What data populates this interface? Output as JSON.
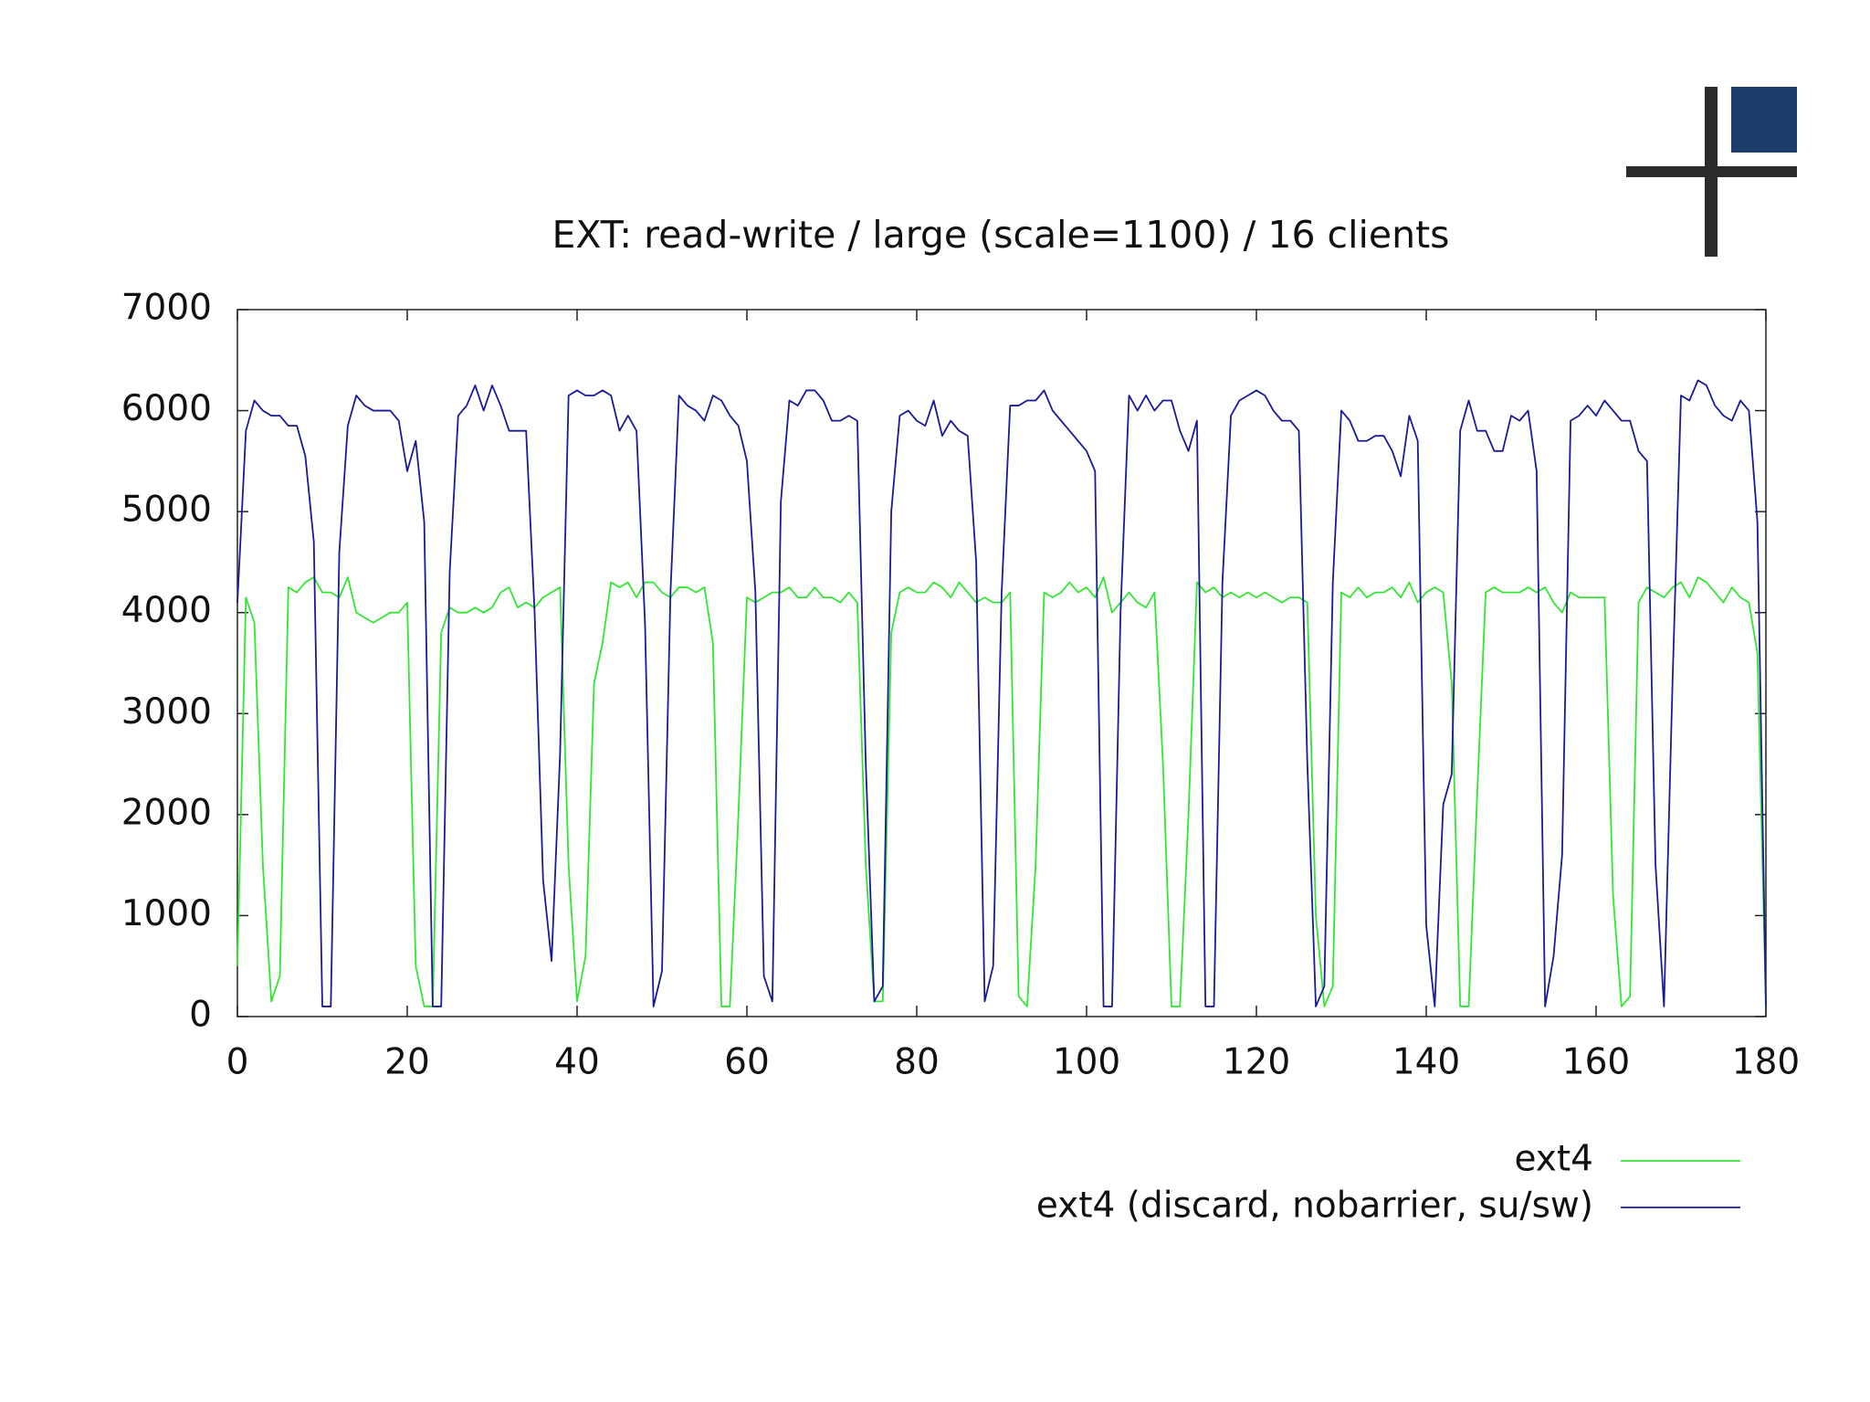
{
  "chart_data": {
    "type": "line",
    "title": "EXT: read-write / large (scale=1100) / 16 clients",
    "x": [
      0,
      1,
      2,
      3,
      4,
      5,
      6,
      7,
      8,
      9,
      10,
      11,
      12,
      13,
      14,
      15,
      16,
      17,
      18,
      19,
      20,
      21,
      22,
      23,
      24,
      25,
      26,
      27,
      28,
      29,
      30,
      31,
      32,
      33,
      34,
      35,
      36,
      37,
      38,
      39,
      40,
      41,
      42,
      43,
      44,
      45,
      46,
      47,
      48,
      49,
      50,
      51,
      52,
      53,
      54,
      55,
      56,
      57,
      58,
      59,
      60,
      61,
      62,
      63,
      64,
      65,
      66,
      67,
      68,
      69,
      70,
      71,
      72,
      73,
      74,
      75,
      76,
      77,
      78,
      79,
      80,
      81,
      82,
      83,
      84,
      85,
      86,
      87,
      88,
      89,
      90,
      91,
      92,
      93,
      94,
      95,
      96,
      97,
      98,
      99,
      100,
      101,
      102,
      103,
      104,
      105,
      106,
      107,
      108,
      109,
      110,
      111,
      112,
      113,
      114,
      115,
      116,
      117,
      118,
      119,
      120,
      121,
      122,
      123,
      124,
      125,
      126,
      127,
      128,
      129,
      130,
      131,
      132,
      133,
      134,
      135,
      136,
      137,
      138,
      139,
      140,
      141,
      142,
      143,
      144,
      145,
      146,
      147,
      148,
      149,
      150,
      151,
      152,
      153,
      154,
      155,
      156,
      157,
      158,
      159,
      160,
      161,
      162,
      163,
      164,
      165,
      166,
      167,
      168,
      169,
      170,
      171,
      172,
      173,
      174,
      175,
      176,
      177,
      178,
      179,
      180
    ],
    "series": [
      {
        "name": "ext4",
        "color": "#33e633",
        "values": [
          500,
          4150,
          3900,
          1500,
          150,
          400,
          4250,
          4200,
          4300,
          4350,
          4200,
          4200,
          4150,
          4350,
          4000,
          3950,
          3900,
          3950,
          4000,
          4000,
          4100,
          500,
          100,
          100,
          3800,
          4050,
          4000,
          4000,
          4050,
          4000,
          4050,
          4200,
          4250,
          4050,
          4100,
          4050,
          4150,
          4200,
          4250,
          1500,
          150,
          600,
          3300,
          3700,
          4300,
          4250,
          4300,
          4150,
          4300,
          4300,
          4200,
          4150,
          4250,
          4250,
          4200,
          4250,
          3700,
          100,
          100,
          2000,
          4150,
          4100,
          4150,
          4200,
          4200,
          4250,
          4150,
          4150,
          4250,
          4150,
          4150,
          4100,
          4200,
          4100,
          1500,
          150,
          150,
          3800,
          4200,
          4250,
          4200,
          4200,
          4300,
          4250,
          4150,
          4300,
          4200,
          4100,
          4150,
          4100,
          4100,
          4200,
          200,
          100,
          1500,
          4200,
          4150,
          4200,
          4300,
          4200,
          4250,
          4150,
          4350,
          4000,
          4100,
          4200,
          4100,
          4050,
          4200,
          2500,
          100,
          100,
          2000,
          4300,
          4200,
          4250,
          4150,
          4200,
          4150,
          4200,
          4150,
          4200,
          4150,
          4100,
          4150,
          4150,
          4100,
          1000,
          100,
          300,
          4200,
          4150,
          4250,
          4150,
          4200,
          4200,
          4250,
          4150,
          4300,
          4100,
          4200,
          4250,
          4200,
          3300,
          100,
          100,
          2200,
          4200,
          4250,
          4200,
          4200,
          4200,
          4250,
          4200,
          4250,
          4100,
          4000,
          4200,
          4150,
          4150,
          4150,
          4150,
          1200,
          100,
          200,
          4100,
          4250,
          4200,
          4150,
          4250,
          4300,
          4150,
          4350,
          4300,
          4200,
          4100,
          4250,
          4150,
          4100,
          3600,
          100
        ]
      },
      {
        "name": "ext4 (discard, nobarrier, su/sw)",
        "color": "#1a1a99",
        "values": [
          4100,
          5800,
          6100,
          6000,
          5950,
          5950,
          5850,
          5850,
          5550,
          4700,
          100,
          100,
          4600,
          5850,
          6150,
          6050,
          6000,
          6000,
          6000,
          5900,
          5400,
          5700,
          4900,
          100,
          100,
          4400,
          5950,
          6050,
          6250,
          6000,
          6250,
          6050,
          5800,
          5800,
          5800,
          4000,
          1350,
          550,
          2600,
          6150,
          6200,
          6150,
          6150,
          6200,
          6150,
          5800,
          5950,
          5800,
          3900,
          100,
          450,
          4200,
          6150,
          6050,
          6000,
          5900,
          6150,
          6100,
          5950,
          5850,
          5500,
          4200,
          400,
          150,
          5100,
          6100,
          6050,
          6200,
          6200,
          6100,
          5900,
          5900,
          5950,
          5900,
          2500,
          150,
          300,
          5000,
          5950,
          6000,
          5900,
          5850,
          6100,
          5750,
          5900,
          5800,
          5750,
          4500,
          150,
          500,
          4200,
          6050,
          6050,
          6100,
          6100,
          6200,
          6000,
          5900,
          5800,
          5700,
          5600,
          5400,
          100,
          100,
          4000,
          6150,
          6000,
          6150,
          6000,
          6100,
          6100,
          5800,
          5600,
          5900,
          100,
          100,
          4300,
          5950,
          6100,
          6150,
          6200,
          6150,
          6000,
          5900,
          5900,
          5800,
          2500,
          100,
          300,
          4300,
          6000,
          5900,
          5700,
          5700,
          5750,
          5750,
          5600,
          5350,
          5950,
          5700,
          900,
          100,
          2100,
          2400,
          5800,
          6100,
          5800,
          5800,
          5600,
          5600,
          5950,
          5900,
          6000,
          5400,
          100,
          600,
          1600,
          5900,
          5950,
          6050,
          5950,
          6100,
          6000,
          5900,
          5900,
          5600,
          5500,
          1500,
          100,
          3300,
          6150,
          6100,
          6300,
          6250,
          6050,
          5950,
          5900,
          6100,
          6000,
          4900,
          100
        ]
      }
    ],
    "xlim": [
      0,
      180
    ],
    "xticks": [
      0,
      20,
      40,
      60,
      80,
      100,
      120,
      140,
      160,
      180
    ],
    "ylim": [
      0,
      7000
    ],
    "yticks": [
      0,
      1000,
      2000,
      3000,
      4000,
      5000,
      6000,
      7000
    ],
    "legend": "bottom-right"
  }
}
